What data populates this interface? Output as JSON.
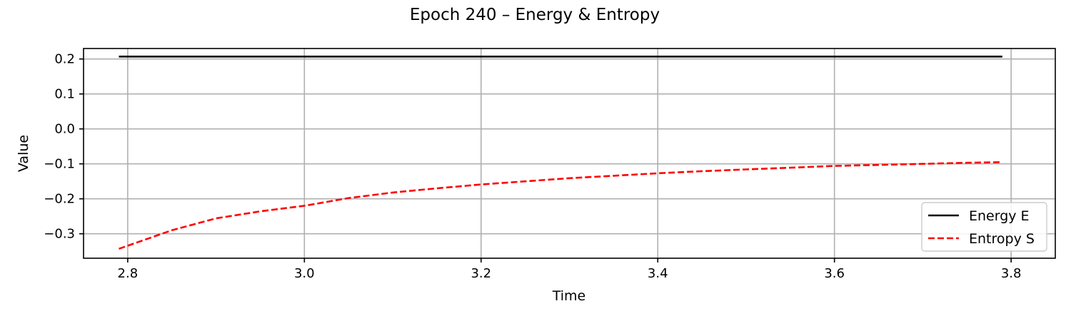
{
  "chart_data": {
    "type": "line",
    "title": "Epoch 240 – Energy & Entropy",
    "xlabel": "Time",
    "ylabel": "Value",
    "xlim": [
      2.75,
      3.85
    ],
    "ylim": [
      -0.37,
      0.23
    ],
    "xticks": [
      2.8,
      3.0,
      3.2,
      3.4,
      3.6,
      3.8
    ],
    "xtick_labels": [
      "2.8",
      "3.0",
      "3.2",
      "3.4",
      "3.6",
      "3.8"
    ],
    "yticks": [
      0.2,
      0.1,
      0.0,
      -0.1,
      -0.2,
      -0.3
    ],
    "ytick_labels": [
      "0.2",
      "0.1",
      "0.0",
      "−0.1",
      "−0.2",
      "−0.3"
    ],
    "grid": true,
    "legend_position": "lower right",
    "series": [
      {
        "name": "Energy E",
        "color": "#000000",
        "style": "solid",
        "x": [
          2.79,
          3.79
        ],
        "y": [
          0.207,
          0.207
        ]
      },
      {
        "name": "Entropy S",
        "color": "#ff0000",
        "style": "dashed",
        "x": [
          2.79,
          2.85,
          2.9,
          2.95,
          3.0,
          3.05,
          3.1,
          3.15,
          3.2,
          3.25,
          3.3,
          3.35,
          3.4,
          3.45,
          3.5,
          3.55,
          3.6,
          3.65,
          3.7,
          3.75,
          3.79
        ],
        "y": [
          -0.343,
          -0.29,
          -0.256,
          -0.236,
          -0.22,
          -0.198,
          -0.182,
          -0.17,
          -0.159,
          -0.15,
          -0.141,
          -0.134,
          -0.127,
          -0.121,
          -0.116,
          -0.111,
          -0.106,
          -0.103,
          -0.1,
          -0.097,
          -0.095
        ]
      }
    ]
  }
}
